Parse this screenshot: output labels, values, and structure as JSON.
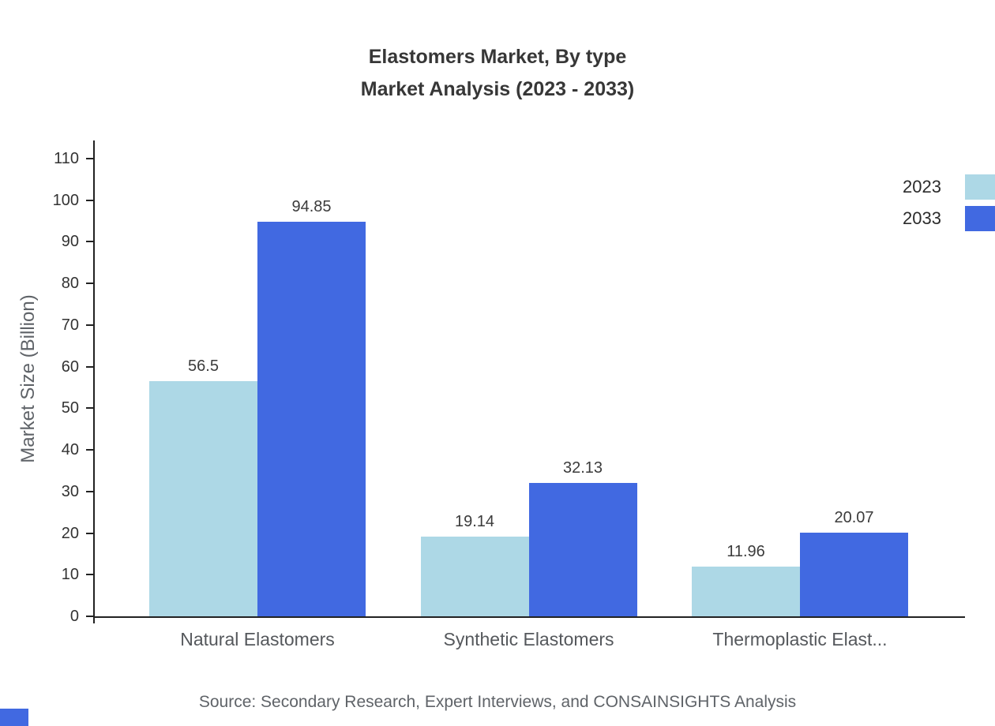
{
  "chart_data": {
    "type": "bar",
    "title_lines": [
      "Elastomers Market, By type",
      "Market Analysis (2023 - 2033)"
    ],
    "categories": [
      "Natural Elastomers",
      "Synthetic Elastomers",
      "Thermoplastic Elast..."
    ],
    "series": [
      {
        "name": "2023",
        "color": "#ADD8E6",
        "values": [
          56.5,
          19.14,
          11.96
        ]
      },
      {
        "name": "2033",
        "color": "#4169E1",
        "values": [
          94.85,
          32.13,
          20.07
        ]
      }
    ],
    "value_labels": [
      [
        "56.5",
        "19.14",
        "11.96"
      ],
      [
        "94.85",
        "32.13",
        "20.07"
      ]
    ],
    "ylabel": "Market Size (Billion)",
    "xlabel": "",
    "ylim": [
      0,
      110
    ],
    "ytick_step": 10,
    "grid": false,
    "legend_position": "top-right"
  },
  "source_note": "Source: Secondary Research, Expert Interviews, and CONSAINSIGHTS Analysis",
  "colors": {
    "axis": "#222222",
    "title_text": "#373737",
    "muted_text": "#5f6368",
    "series_2023": "#ADD8E6",
    "series_2033": "#4169E1",
    "brand_mark": "#4169E1"
  }
}
